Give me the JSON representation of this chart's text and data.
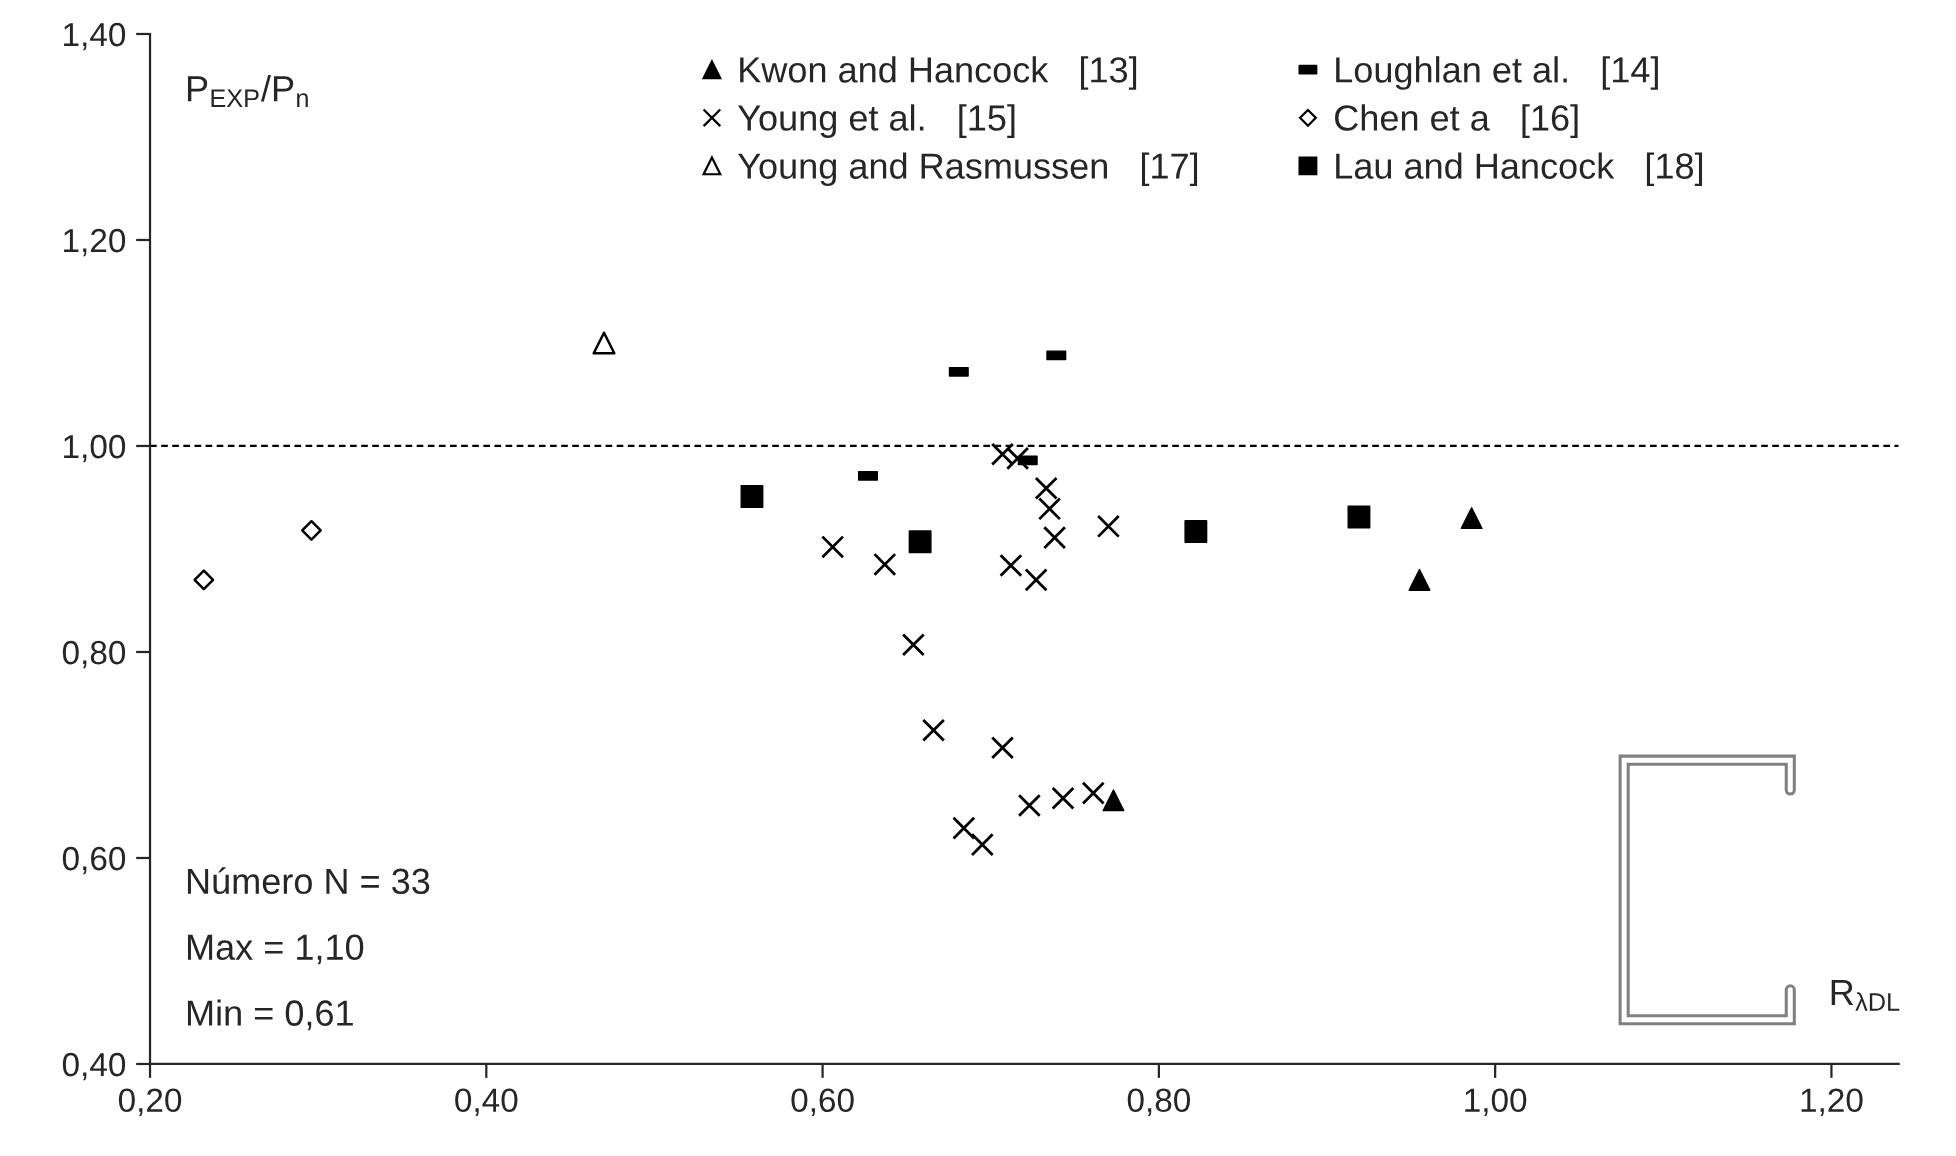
{
  "chart_data": {
    "type": "scatter",
    "ylabel": "P$_{EXP}$/P$_{n}$",
    "xlabel": "R$_{λDL}$",
    "xlim": [
      0.2,
      1.24
    ],
    "ylim": [
      0.4,
      1.4
    ],
    "xticks": [
      {
        "value": 0.2,
        "label": "0,20"
      },
      {
        "value": 0.4,
        "label": "0,40"
      },
      {
        "value": 0.6,
        "label": "0,60"
      },
      {
        "value": 0.8,
        "label": "0,80"
      },
      {
        "value": 1.0,
        "label": "1,00"
      },
      {
        "value": 1.2,
        "label": "1,20"
      }
    ],
    "yticks": [
      {
        "value": 0.4,
        "label": "0,40"
      },
      {
        "value": 0.6,
        "label": "0,60"
      },
      {
        "value": 0.8,
        "label": "0,80"
      },
      {
        "value": 1.0,
        "label": "1,00"
      },
      {
        "value": 1.2,
        "label": "1,20"
      },
      {
        "value": 1.4,
        "label": "1,40"
      }
    ],
    "grid": false,
    "legend": "top",
    "ref_lines": [
      {
        "axis": "y",
        "value": 1.0,
        "line_style": "dashed",
        "color": "#000000"
      }
    ],
    "annotations": [
      "Número N = 33",
      "Max = 1,10",
      "Min = 0,61"
    ],
    "series": [
      {
        "name": "Kwon and Hancock   [13]",
        "marker": "triangle",
        "color": "#000000",
        "x": [
          0.773,
          0.955,
          0.986
        ],
        "values": [
          0.656,
          0.87,
          0.93
        ]
      },
      {
        "name": "Loughlan et al.   [14]",
        "color": "#000000",
        "x": [
          0.627,
          0.681,
          0.722,
          0.739
        ],
        "values": [
          0.971,
          1.072,
          0.986,
          1.088
        ]
      },
      {
        "name": "Young et al.   [15]",
        "marker": "cross",
        "color": "#000000",
        "x": [
          0.606,
          0.637,
          0.654,
          0.666,
          0.684,
          0.695,
          0.707,
          0.707,
          0.712,
          0.716,
          0.723,
          0.727,
          0.733,
          0.735,
          0.738,
          0.743,
          0.761,
          0.77
        ],
        "values": [
          0.902,
          0.885,
          0.807,
          0.724,
          0.629,
          0.613,
          0.707,
          0.992,
          0.884,
          0.988,
          0.651,
          0.87,
          0.959,
          0.939,
          0.911,
          0.658,
          0.663,
          0.922
        ]
      },
      {
        "name": "Chen et a   [16]",
        "marker": "diamond",
        "color": "#000000",
        "x": [
          0.232,
          0.296
        ],
        "values": [
          0.87,
          0.918
        ]
      },
      {
        "name": "Young and Rasmussen   [17]",
        "marker": "triangle_open",
        "color": "#000000",
        "x": [
          0.47
        ],
        "values": [
          1.1
        ]
      },
      {
        "name": "Lau and Hancock   [18]",
        "marker": "square",
        "color": "#000000",
        "x": [
          0.558,
          0.658,
          0.822,
          0.919
        ],
        "values": [
          0.951,
          0.907,
          0.917,
          0.931
        ]
      }
    ]
  }
}
